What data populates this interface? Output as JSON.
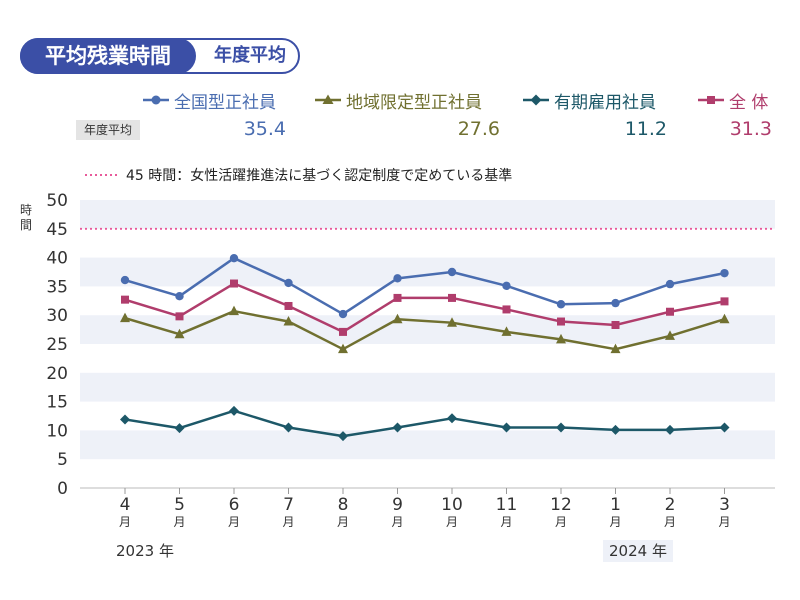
{
  "header": {
    "title": "平均残業時間",
    "subtitle": "年度平均"
  },
  "legend": {
    "items": [
      {
        "label": "全国型正社員",
        "color": "#4a6db0",
        "marker": "circle"
      },
      {
        "label": "地域限定型正社員",
        "color": "#707030",
        "marker": "triangle"
      },
      {
        "label": "有期雇用社員",
        "color": "#1d5868",
        "marker": "diamond"
      },
      {
        "label": "全 体",
        "color": "#b03d6c",
        "marker": "square"
      }
    ]
  },
  "averages": {
    "label": "年度平均",
    "values": [
      "35.4",
      "27.6",
      "11.2",
      "31.3"
    ]
  },
  "reference": {
    "label": "45 時間：女性活躍推進法に基づく認定制度で定めている基準",
    "value": 45,
    "color": "#e85a9a"
  },
  "chart_data": {
    "type": "line",
    "ylabel": "時間",
    "ylim": [
      0,
      50
    ],
    "yticks": [
      0,
      5,
      10,
      15,
      20,
      25,
      30,
      35,
      40,
      45,
      50
    ],
    "categories": [
      "4",
      "5",
      "6",
      "7",
      "8",
      "9",
      "10",
      "11",
      "12",
      "1",
      "2",
      "3"
    ],
    "category_unit": "月",
    "year_labels": [
      {
        "label": "2023 年",
        "at": "4"
      },
      {
        "label": "2024 年",
        "at": "1"
      }
    ],
    "series": [
      {
        "name": "全国型正社員",
        "color": "#4a6db0",
        "marker": "circle",
        "values": [
          36.1,
          33.3,
          39.9,
          35.6,
          30.2,
          36.4,
          37.5,
          35.1,
          31.9,
          32.1,
          35.4,
          37.3
        ]
      },
      {
        "name": "全 体",
        "color": "#b03d6c",
        "marker": "square",
        "values": [
          32.7,
          29.8,
          35.5,
          31.6,
          27.1,
          33.0,
          33.0,
          31.0,
          28.9,
          28.3,
          30.6,
          32.4
        ]
      },
      {
        "name": "地域限定型正社員",
        "color": "#707030",
        "marker": "triangle",
        "values": [
          29.5,
          26.7,
          30.7,
          28.9,
          24.1,
          29.3,
          28.7,
          27.1,
          25.8,
          24.1,
          26.4,
          29.3
        ]
      },
      {
        "name": "有期雇用社員",
        "color": "#1d5868",
        "marker": "diamond",
        "values": [
          11.9,
          10.4,
          13.4,
          10.5,
          9.0,
          10.5,
          12.1,
          10.5,
          10.5,
          10.1,
          10.1,
          10.5
        ]
      }
    ]
  }
}
